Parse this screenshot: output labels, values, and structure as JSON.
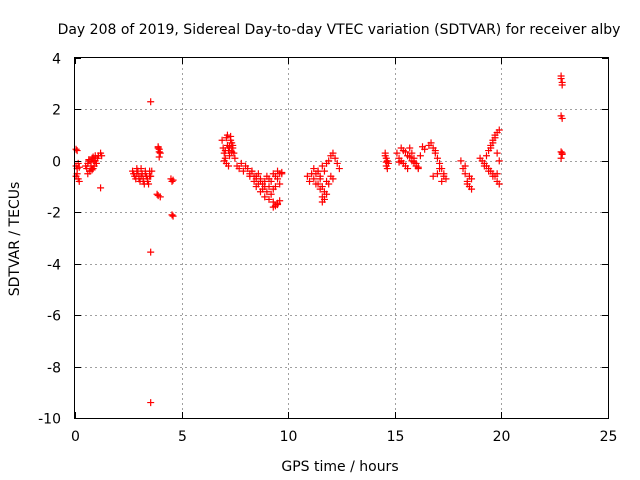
{
  "chart_data": {
    "type": "scatter",
    "title": "Day 208 of 2019, Sidereal Day-to-day VTEC variation (SDTVAR) for receiver alby",
    "xlabel": "GPS time / hours",
    "ylabel": "SDTVAR / TECUs",
    "xlim": [
      0,
      25
    ],
    "ylim": [
      -10,
      4
    ],
    "xticks": [
      0,
      5,
      10,
      15,
      20,
      25
    ],
    "yticks": [
      4,
      2,
      0,
      -2,
      -4,
      -6,
      -8,
      -10
    ],
    "xtick_labels": [
      "0",
      "5",
      "10",
      "15",
      "20",
      "25"
    ],
    "ytick_labels": [
      "4",
      "2",
      "0",
      "-2",
      "-4",
      "-6",
      "-8",
      "-10"
    ],
    "grid": true,
    "marker": "+",
    "color": "#ff0000",
    "series": [
      {
        "name": "SDTVAR",
        "x": [
          0.05,
          0.1,
          0.15,
          0.1,
          0.05,
          0.15,
          0.2,
          0.1,
          0.05,
          0.2,
          0.5,
          0.55,
          0.6,
          0.65,
          0.7,
          0.75,
          0.8,
          0.85,
          0.9,
          0.95,
          1.0,
          1.05,
          1.1,
          0.6,
          0.7,
          0.8,
          0.9,
          1.0,
          0.65,
          0.75,
          0.85,
          0.95,
          1.2,
          1.25,
          1.2,
          2.7,
          2.75,
          2.8,
          2.85,
          2.9,
          2.95,
          3.0,
          3.05,
          3.1,
          3.15,
          3.2,
          3.25,
          3.3,
          3.35,
          3.4,
          3.45,
          3.5,
          3.55,
          2.9,
          3.0,
          3.1,
          3.2,
          3.3,
          3.4,
          3.5,
          3.6,
          3.55,
          3.55,
          3.55,
          3.9,
          3.95,
          4.0,
          3.95,
          3.9,
          4.0,
          3.85,
          3.9,
          3.95,
          4.5,
          4.55,
          4.6,
          4.55,
          4.6,
          6.9,
          6.95,
          7.0,
          7.05,
          7.1,
          7.15,
          7.2,
          7.25,
          7.3,
          7.35,
          7.4,
          7.45,
          7.5,
          7.0,
          7.1,
          7.2,
          7.3,
          7.4,
          7.05,
          7.15,
          7.25,
          7.35,
          7.6,
          7.7,
          7.8,
          7.9,
          8.0,
          8.1,
          8.2,
          8.3,
          8.4,
          8.5,
          8.6,
          8.7,
          8.8,
          8.9,
          9.0,
          9.1,
          9.2,
          9.3,
          9.4,
          9.5,
          9.6,
          9.7,
          8.2,
          8.4,
          8.6,
          8.8,
          9.0,
          9.2,
          9.4,
          9.6,
          8.3,
          8.5,
          8.7,
          8.9,
          9.1,
          9.3,
          9.5,
          8.5,
          8.7,
          8.9,
          9.1,
          9.3,
          9.5,
          9.3,
          9.4,
          9.5,
          9.6,
          9.7,
          10.9,
          11.0,
          11.1,
          11.2,
          11.3,
          11.4,
          11.5,
          11.6,
          11.7,
          11.8,
          11.9,
          12.0,
          12.1,
          12.2,
          12.3,
          12.4,
          11.2,
          11.4,
          11.6,
          11.8,
          12.0,
          11.3,
          11.5,
          11.7,
          11.9,
          12.1,
          11.6,
          11.7,
          11.8,
          11.6,
          11.5,
          11.4,
          14.55,
          14.6,
          14.65,
          14.7,
          14.6,
          14.65,
          14.55,
          14.6,
          15.1,
          15.2,
          15.3,
          15.4,
          15.5,
          15.6,
          15.7,
          15.8,
          15.9,
          16.0,
          16.1,
          16.2,
          15.2,
          15.4,
          15.6,
          15.8,
          16.0,
          15.3,
          15.5,
          15.7,
          15.9,
          16.1,
          16.3,
          16.4,
          16.6,
          16.7,
          16.8,
          16.9,
          17.0,
          17.1,
          17.2,
          17.3,
          17.4,
          16.8,
          17.0,
          17.2,
          16.9,
          17.1,
          17.3,
          18.1,
          18.2,
          18.3,
          18.4,
          18.5,
          18.6,
          18.3,
          18.5,
          18.4,
          18.6,
          19.0,
          19.1,
          19.2,
          19.3,
          19.4,
          19.5,
          19.6,
          19.7,
          19.8,
          19.9,
          19.5,
          19.6,
          19.7,
          19.8,
          19.9,
          19.3,
          19.4,
          19.5,
          19.6,
          19.7,
          19.8,
          19.9,
          19.2,
          19.4,
          19.6,
          19.8,
          22.8,
          22.85,
          22.8,
          22.85,
          22.8,
          22.85,
          22.8,
          22.85,
          22.8,
          22.85
        ],
        "y": [
          -0.2,
          -0.3,
          -0.1,
          -0.5,
          -0.6,
          -0.7,
          -0.8,
          0.4,
          0.45,
          -0.25,
          -0.2,
          -0.3,
          -0.1,
          0.0,
          -0.4,
          -0.2,
          0.1,
          -0.3,
          0.0,
          0.2,
          -0.1,
          0.1,
          0.2,
          -0.5,
          -0.4,
          -0.35,
          -0.2,
          -0.1,
          0.05,
          -0.05,
          0.15,
          0.0,
          0.3,
          0.2,
          -1.05,
          -0.4,
          -0.5,
          -0.6,
          -0.7,
          -0.3,
          -0.4,
          -0.6,
          -0.8,
          -0.3,
          -0.5,
          -0.7,
          -0.9,
          -0.4,
          -0.6,
          -0.8,
          -0.9,
          -0.4,
          -0.6,
          -0.5,
          -0.7,
          -0.6,
          -0.8,
          -0.5,
          -0.7,
          -0.6,
          -0.4,
          2.3,
          -3.55,
          -9.4,
          0.5,
          0.45,
          0.3,
          0.15,
          -1.35,
          -1.4,
          -1.3,
          0.55,
          0.35,
          -0.7,
          -0.8,
          -0.75,
          -2.1,
          -2.15,
          0.8,
          0.5,
          0.3,
          0.1,
          0.9,
          0.6,
          0.4,
          0.2,
          0.95,
          0.7,
          0.5,
          0.3,
          0.1,
          0.0,
          -0.1,
          -0.2,
          0.8,
          0.6,
          0.4,
          1.0,
          0.55,
          0.35,
          -0.2,
          -0.3,
          -0.1,
          -0.4,
          -0.2,
          -0.3,
          -0.5,
          -0.4,
          -0.6,
          -0.7,
          -0.5,
          -0.8,
          -0.9,
          -1.0,
          -0.6,
          -0.7,
          -0.8,
          -0.5,
          -0.6,
          -0.4,
          -0.5,
          -0.45,
          -0.6,
          -0.8,
          -0.9,
          -1.1,
          -1.2,
          -1.3,
          -1.0,
          -0.9,
          -0.4,
          -0.6,
          -0.7,
          -0.8,
          -1.0,
          -1.1,
          -0.7,
          -1.0,
          -1.2,
          -1.4,
          -1.5,
          -1.6,
          -1.7,
          -1.8,
          -1.75,
          -1.65,
          -1.55,
          -0.5,
          -0.6,
          -0.8,
          -0.5,
          -0.7,
          -0.9,
          -0.4,
          -0.6,
          -0.2,
          -0.4,
          -0.1,
          0.0,
          0.2,
          0.3,
          0.1,
          -0.1,
          -0.3,
          -0.3,
          -0.4,
          -1.0,
          -0.8,
          -0.6,
          -0.5,
          -0.7,
          -1.2,
          -0.9,
          -0.7,
          -1.4,
          -1.5,
          -1.3,
          -1.6,
          -1.1,
          -0.9,
          0.2,
          0.1,
          0.0,
          -0.1,
          -0.2,
          -0.3,
          0.3,
          -0.05,
          0.3,
          0.1,
          0.0,
          -0.1,
          -0.2,
          -0.3,
          0.5,
          0.3,
          0.1,
          -0.1,
          -0.3,
          0.2,
          -0.05,
          0.4,
          0.2,
          0.0,
          -0.2,
          0.5,
          0.35,
          0.15,
          -0.05,
          -0.25,
          0.55,
          0.45,
          0.6,
          0.7,
          0.5,
          0.3,
          0.1,
          -0.1,
          -0.3,
          -0.5,
          -0.7,
          -0.6,
          -0.5,
          -0.8,
          0.4,
          -0.3,
          -0.6,
          0.0,
          -0.3,
          -0.5,
          -0.8,
          -1.0,
          -1.1,
          -0.2,
          -0.6,
          -0.9,
          -0.7,
          0.1,
          0.0,
          -0.1,
          -0.2,
          -0.3,
          -0.4,
          -0.5,
          -0.6,
          -0.8,
          -0.9,
          0.5,
          0.7,
          0.9,
          1.1,
          1.2,
          0.2,
          0.4,
          0.6,
          0.8,
          1.0,
          0.3,
          0.0,
          -0.2,
          -0.4,
          -0.6,
          -0.5,
          3.2,
          3.05,
          3.3,
          2.95,
          1.75,
          1.65,
          0.35,
          0.25,
          0.1,
          0.3
        ]
      }
    ]
  }
}
